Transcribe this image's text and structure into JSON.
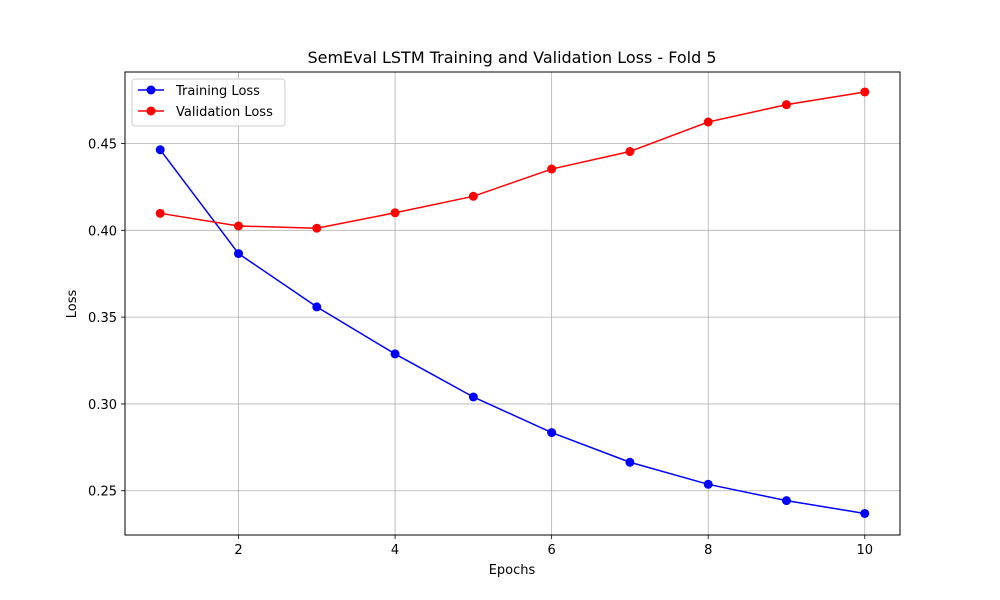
{
  "chart_data": {
    "type": "line",
    "title": "SemEval LSTM Training and Validation Loss - Fold 5",
    "xlabel": "Epochs",
    "ylabel": "Loss",
    "x": [
      1,
      2,
      3,
      4,
      5,
      6,
      7,
      8,
      9,
      10
    ],
    "xlim": [
      0.55,
      10.45
    ],
    "ylim": [
      0.2245,
      0.4912
    ],
    "xticks": [
      2,
      4,
      6,
      8,
      10
    ],
    "yticks": [
      0.25,
      0.3,
      0.35,
      0.4,
      0.45
    ],
    "ytick_labels": [
      "0.25",
      "0.30",
      "0.35",
      "0.40",
      "0.45"
    ],
    "grid": true,
    "legend_position": "top-left",
    "series": [
      {
        "name": "Training Loss",
        "color": "#0000ff",
        "values": [
          0.4464,
          0.3866,
          0.3559,
          0.3288,
          0.304,
          0.2835,
          0.2664,
          0.2537,
          0.2443,
          0.2369
        ]
      },
      {
        "name": "Validation Loss",
        "color": "#ff0000",
        "values": [
          0.4098,
          0.4025,
          0.4012,
          0.4101,
          0.4196,
          0.4353,
          0.4454,
          0.4624,
          0.4724,
          0.4797
        ]
      }
    ]
  }
}
